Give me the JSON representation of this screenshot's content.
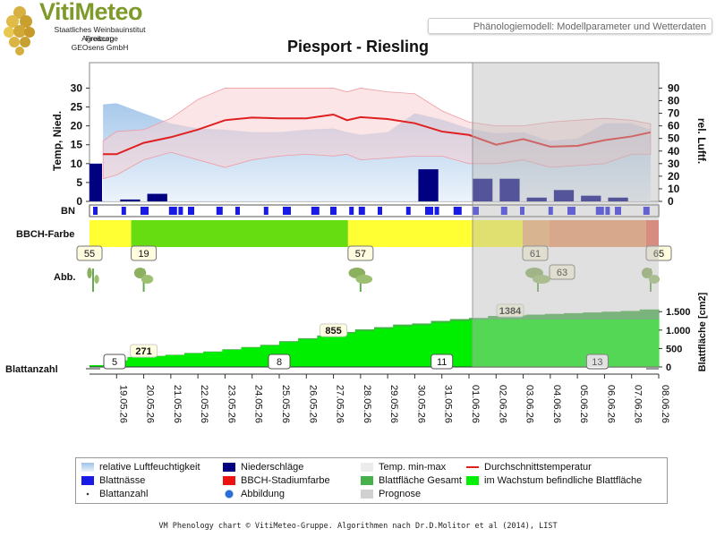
{
  "logo": {
    "title": "VitiMeteo",
    "lines": [
      "Staatliches Weinbauinstitut Freiburg",
      "Agroscope",
      "GEOsens GmbH"
    ]
  },
  "header": {
    "badge": "Phänologiemodell: Modellparameter und Wetterdaten"
  },
  "chart_title": "Piesport - Riesling",
  "footer": "VM Phenology chart © VitiMeteo-Gruppe. Algorithmen nach Dr.D.Molitor et al (2014), LIST",
  "row_labels": {
    "bn": "BN",
    "bbch": "BBCH-Farbe",
    "abb": "Abb.",
    "blattanzahl": "Blattanzahl"
  },
  "colors": {
    "humidity_band": "#b9d3ec",
    "temp_band": "#f8cfd2",
    "temp_line": "#e02020",
    "precip": "#000080",
    "leaf_wetness": "#1a1ae6",
    "leaf_total": "#46b04a",
    "leaf_growing": "#00ee00",
    "forecast": "#d9d9d9"
  },
  "legend": [
    {
      "label": "relative Luftfeuchtigkeit",
      "symbol": "humidity-gradient"
    },
    {
      "label": "Niederschläge",
      "symbol": "navy-square"
    },
    {
      "label": "Temp. min-max",
      "symbol": "light-square"
    },
    {
      "label": "Durchschnittstemperatur",
      "symbol": "red-line"
    },
    {
      "label": "Blattnässe",
      "symbol": "blue-square"
    },
    {
      "label": "BBCH-Stadiumfarbe",
      "symbol": "red-square"
    },
    {
      "label": "Blattfläche Gesamt",
      "symbol": "green-square"
    },
    {
      "label": "im Wachstum befindliche Blattfläche",
      "symbol": "lime-square"
    },
    {
      "label": "Blattanzahl",
      "symbol": "dot"
    },
    {
      "label": "Abbildung",
      "symbol": "globe-icon"
    },
    {
      "label": "Prognose",
      "symbol": "grey-square"
    }
  ],
  "chart_data": {
    "type": "line",
    "dates": [
      "19.05.26",
      "20.05.26",
      "21.05.26",
      "22.05.26",
      "23.05.26",
      "24.05.26",
      "25.05.26",
      "26.05.26",
      "27.05.26",
      "28.05.26",
      "29.05.26",
      "30.05.26",
      "31.05.26",
      "01.06.26",
      "02.06.26",
      "03.06.26",
      "04.06.26",
      "05.06.26",
      "06.06.26",
      "07.06.26",
      "08.06.26"
    ],
    "forecast_from": "01.06.26",
    "left_axis": {
      "label": "Temp, Nied.",
      "ticks": [
        0,
        5,
        10,
        15,
        20,
        25,
        30
      ],
      "range": [
        0,
        32
      ]
    },
    "right_axis": {
      "label": "rel. Luftf.",
      "ticks": [
        0,
        10,
        20,
        30,
        40,
        50,
        60,
        70,
        80,
        90
      ],
      "range": [
        0,
        96
      ]
    },
    "temp_mean": [
      12.5,
      12.5,
      15.5,
      17,
      19,
      21.5,
      22.2,
      22,
      22,
      23,
      21.5,
      22.3,
      21.8,
      20.7,
      18.5,
      17.6,
      15,
      16.5,
      14.5,
      14.7,
      16.2,
      17.2,
      18.3
    ],
    "temp_mean_x": [
      18.5,
      19,
      20,
      21,
      22,
      23,
      24,
      25,
      26,
      27,
      27.5,
      28,
      29,
      30,
      31,
      32,
      33,
      34,
      35,
      36,
      37,
      38,
      38.7
    ],
    "temp_max": [
      16,
      18.5,
      19,
      22,
      27,
      30,
      30,
      30,
      30,
      30,
      29,
      30,
      29,
      28.5,
      24,
      21,
      20,
      20,
      21,
      21.5,
      22,
      21.5,
      20.5
    ],
    "temp_min": [
      6,
      7,
      11,
      13,
      11,
      9,
      11,
      12,
      12.5,
      12,
      12.5,
      11,
      11.5,
      12,
      12,
      10,
      10,
      11,
      9,
      9.5,
      10,
      12.5,
      12.5
    ],
    "humidity": [
      77,
      78,
      70,
      62,
      58,
      57,
      55,
      55,
      57,
      58,
      55,
      53,
      55,
      70,
      65,
      58,
      54,
      55,
      48,
      50,
      62,
      62,
      57
    ],
    "precip": [
      {
        "from": "19.05.26",
        "to": "19.05.26",
        "value": 10
      },
      {
        "from": "19.05.26",
        "to": "20.05.26",
        "value": 0.5
      },
      {
        "from": "20.05.26",
        "to": "21.05.26",
        "value": 2
      },
      {
        "from": "30.05.26",
        "to": "31.05.26",
        "value": 8.5
      },
      {
        "from": "01.06.26",
        "to": "02.06.26",
        "value": 6
      },
      {
        "from": "02.06.26",
        "to": "03.06.26",
        "value": 6
      },
      {
        "from": "03.06.26",
        "to": "04.06.26",
        "value": 1
      },
      {
        "from": "04.06.26",
        "to": "05.06.26",
        "value": 3
      },
      {
        "from": "05.06.26",
        "to": "06.06.26",
        "value": 1.5
      },
      {
        "from": "06.06.26",
        "to": "07.06.26",
        "value": 1
      }
    ],
    "bbch_stages": [
      {
        "label": "55",
        "start": "19.05.26",
        "color": "#ffff33"
      },
      {
        "label": "19",
        "start": "20.05.26",
        "color": "#66dd11"
      },
      {
        "label": "57",
        "start": "28.05.26",
        "color": "#ffff33"
      },
      {
        "label": "61",
        "start": "03.06.26",
        "color": "#f0a060"
      },
      {
        "label": "63",
        "start": "04.06.26",
        "color": "#f0a060"
      },
      {
        "label": "65",
        "start": "08.06.26",
        "color": "#ee7755"
      }
    ],
    "leaf_area": {
      "axis_label": "Blattfläche [cm2]",
      "ticks": [
        "0",
        "500",
        "1.000",
        "1.500"
      ],
      "range": [
        0,
        1700
      ],
      "annotations": [
        {
          "date": "20.05.26",
          "label": "271"
        },
        {
          "date": "27.05.26",
          "label": "855"
        },
        {
          "date": "02.06.26",
          "label": "1384"
        }
      ],
      "total": [
        50,
        180,
        271,
        300,
        330,
        380,
        420,
        480,
        540,
        600,
        700,
        780,
        855,
        950,
        1020,
        1080,
        1150,
        1180,
        1250,
        1300,
        1330,
        1384,
        1400,
        1420,
        1440,
        1460,
        1480,
        1500,
        1520,
        1560
      ],
      "growing": [
        50,
        180,
        271,
        300,
        330,
        380,
        420,
        480,
        540,
        600,
        700,
        780,
        855,
        950,
        1020,
        1080,
        1150,
        1180,
        1250,
        1300,
        1330,
        1340,
        1340,
        1340,
        1340,
        1340,
        1340,
        1340,
        1340,
        1340
      ]
    },
    "leaf_count": [
      {
        "date": "19.05.26",
        "label": "5"
      },
      {
        "date": "25.05.26",
        "label": "8"
      },
      {
        "date": "31.05.26",
        "label": "11"
      },
      {
        "date": "06.06.26",
        "label": "13"
      }
    ]
  }
}
